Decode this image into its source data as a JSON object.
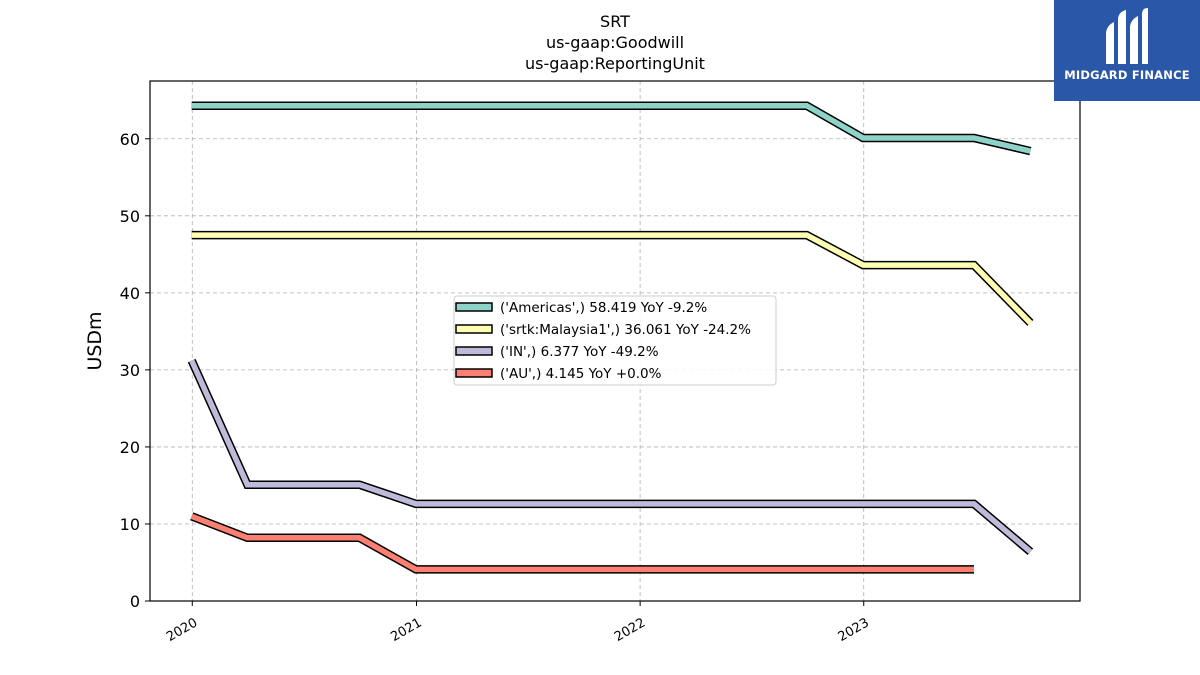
{
  "chart_data": {
    "type": "line",
    "title_lines": [
      "SRT",
      "us-gaap:Goodwill",
      "us-gaap:ReportingUnit"
    ],
    "xlabel": "",
    "ylabel": "USDm",
    "x_ticks": [
      "2020",
      "2021",
      "2022",
      "2023"
    ],
    "y_ticks": [
      "0",
      "10",
      "20",
      "30",
      "40",
      "50",
      "60"
    ],
    "xlim": [
      "2019-10-24",
      "2023-12-20"
    ],
    "ylim": [
      0,
      67.5
    ],
    "grid": true,
    "legend_position": "center",
    "series": [
      {
        "name": "('Americas',) 58.419 YoY -9.2%",
        "color": "#8dd3c7",
        "points": [
          {
            "x": "2019-12-31",
            "y": 64.3
          },
          {
            "x": "2022-09-30",
            "y": 64.3
          },
          {
            "x": "2022-12-31",
            "y": 60.1
          },
          {
            "x": "2023-06-30",
            "y": 60.1
          },
          {
            "x": "2023-09-30",
            "y": 58.4
          }
        ]
      },
      {
        "name": "('srtk:Malaysia1',) 36.061 YoY -24.2%",
        "color": "#ffffb3",
        "points": [
          {
            "x": "2019-12-31",
            "y": 47.5
          },
          {
            "x": "2022-09-30",
            "y": 47.5
          },
          {
            "x": "2022-12-31",
            "y": 43.6
          },
          {
            "x": "2023-06-30",
            "y": 43.6
          },
          {
            "x": "2023-09-30",
            "y": 36.1
          }
        ]
      },
      {
        "name": "('IN',) 6.377 YoY -49.2%",
        "color": "#bebada",
        "points": [
          {
            "x": "2019-12-31",
            "y": 31.2
          },
          {
            "x": "2020-03-31",
            "y": 15.1
          },
          {
            "x": "2020-09-30",
            "y": 15.1
          },
          {
            "x": "2020-12-31",
            "y": 12.6
          },
          {
            "x": "2023-06-30",
            "y": 12.6
          },
          {
            "x": "2023-09-30",
            "y": 6.4
          }
        ]
      },
      {
        "name": "('AU',) 4.145 YoY +0.0%",
        "color": "#fb8072",
        "points": [
          {
            "x": "2019-12-31",
            "y": 11.0
          },
          {
            "x": "2020-03-31",
            "y": 8.2
          },
          {
            "x": "2020-09-30",
            "y": 8.2
          },
          {
            "x": "2020-12-31",
            "y": 4.1
          },
          {
            "x": "2023-06-30",
            "y": 4.1
          }
        ]
      }
    ]
  },
  "logo": {
    "text": "MIDGARD FINANCE",
    "background": "#2a57a8"
  }
}
